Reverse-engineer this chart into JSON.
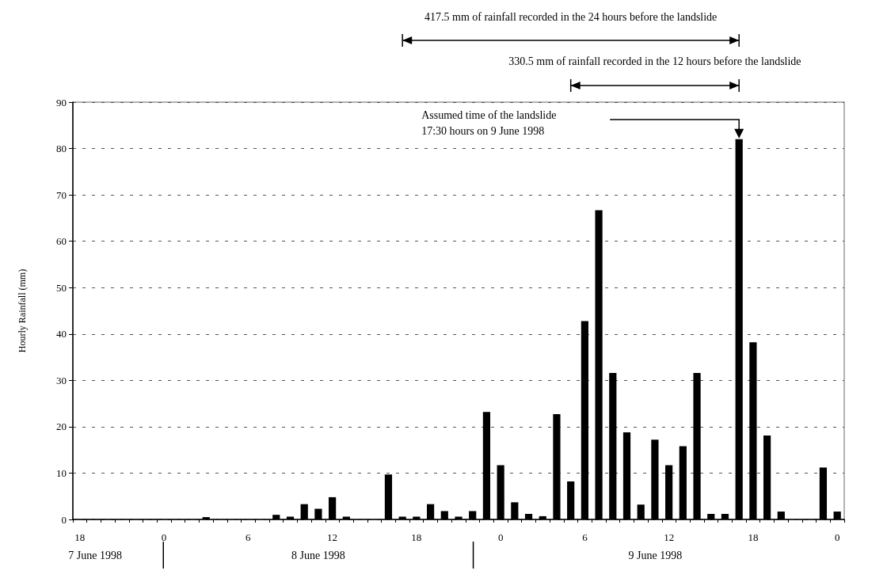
{
  "chart_data": {
    "type": "bar",
    "ylabel": "Hourly Rainfall (mm)",
    "categories": [
      "18",
      null,
      null,
      null,
      null,
      null,
      "0",
      null,
      null,
      null,
      null,
      null,
      "6",
      null,
      null,
      null,
      null,
      null,
      "12",
      null,
      null,
      null,
      null,
      null,
      "18",
      null,
      null,
      null,
      null,
      null,
      "0",
      null,
      null,
      null,
      null,
      null,
      "6",
      null,
      null,
      null,
      null,
      null,
      "12",
      null,
      null,
      null,
      null,
      null,
      "18",
      null,
      null,
      null,
      null,
      null,
      "0"
    ],
    "values": [
      0,
      0,
      0,
      0,
      0,
      0,
      0,
      0,
      0,
      0.5,
      0,
      0,
      0,
      0,
      1,
      0.6,
      3.3,
      2.3,
      4.8,
      0.6,
      0,
      0,
      9.7,
      0.6,
      0.6,
      3.3,
      1.8,
      0.6,
      1.8,
      23.2,
      11.7,
      3.7,
      1.2,
      0.7,
      22.7,
      8.2,
      42.8,
      66.7,
      31.6,
      18.8,
      3.2,
      17.2,
      11.7,
      15.8,
      31.6,
      1.2,
      1.2,
      82.0,
      38.2,
      18.1,
      1.7,
      0,
      0,
      11.2,
      1.7
    ],
    "color": "#000000",
    "ylim": [
      0,
      90
    ],
    "yticks": [
      0,
      10,
      20,
      30,
      40,
      50,
      60,
      70,
      80,
      90
    ],
    "grid": "y",
    "annotations": [
      "417.5 mm of rainfall recorded in the 24 hours before the landslide",
      "330.5 mm of rainfall recorded in the 12 hours before the landslide",
      "Assumed time of the landslide\n17:30 hours on 9 June 1998",
      "7 June 1998",
      "8 June 1998",
      "9 June 1998"
    ]
  }
}
